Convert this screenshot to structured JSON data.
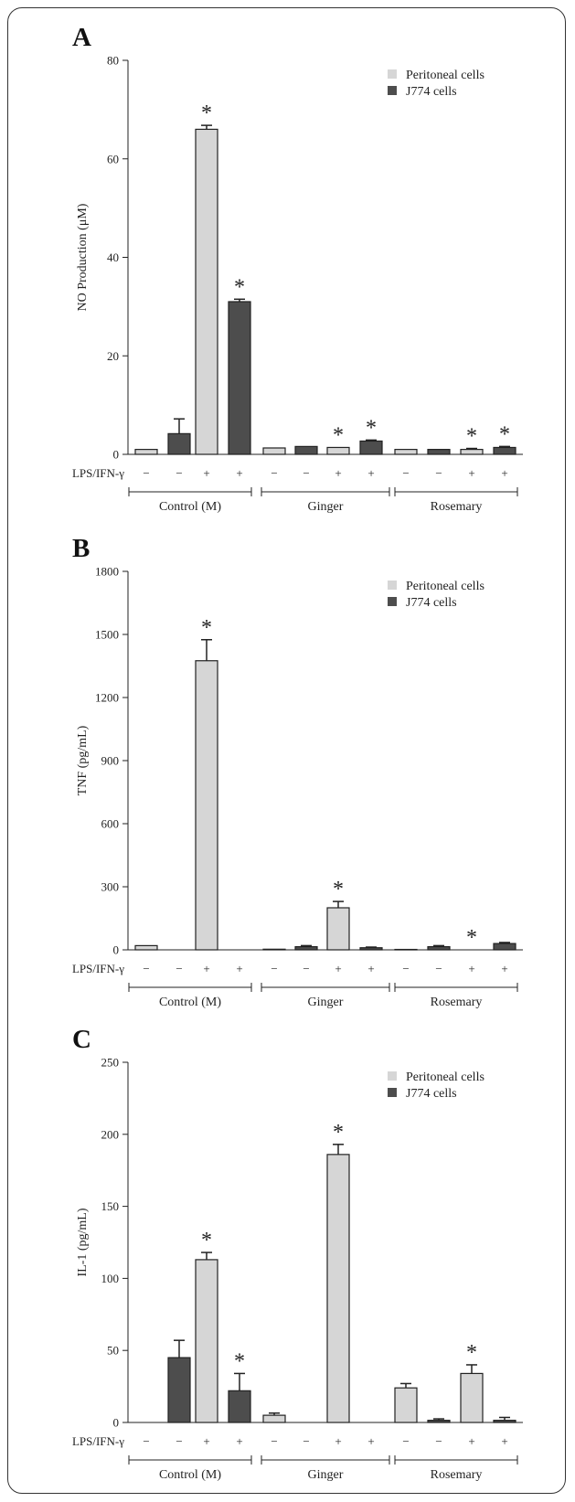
{
  "figure": {
    "row_label": "LPS/IFN-γ",
    "minus_sign": "−",
    "plus_sign": "+",
    "star": "*",
    "colors": {
      "peritoneal": "#d6d6d6",
      "j774": "#4d4d4d",
      "axis": "#222222"
    }
  },
  "chart_data": [
    {
      "panel": "A",
      "type": "bar",
      "ylabel": "NO Production (μM)",
      "ylim": [
        0,
        80
      ],
      "yticks": [
        0,
        20,
        40,
        60,
        80
      ],
      "legend": {
        "placement": "top-right",
        "entries": [
          "Peritoneal cells",
          "J774 cells"
        ]
      },
      "groups": [
        "Control (M)",
        "Ginger",
        "Rosemary"
      ],
      "lps_ifn": [
        "−",
        "−",
        "+",
        "+",
        "−",
        "−",
        "+",
        "+",
        "−",
        "−",
        "+",
        "+"
      ],
      "bars": [
        {
          "group": "Control (M)",
          "lps_ifn": "−",
          "series": "Peritoneal cells",
          "value": 1,
          "err": 0
        },
        {
          "group": "Control (M)",
          "lps_ifn": "−",
          "series": "J774 cells",
          "value": 4.2,
          "err": 3
        },
        {
          "group": "Control (M)",
          "lps_ifn": "+",
          "series": "Peritoneal cells",
          "value": 66,
          "err": 0.8,
          "sig": true
        },
        {
          "group": "Control (M)",
          "lps_ifn": "+",
          "series": "J774 cells",
          "value": 31,
          "err": 0.5,
          "sig": true
        },
        {
          "group": "Ginger",
          "lps_ifn": "−",
          "series": "Peritoneal cells",
          "value": 1.3,
          "err": 0
        },
        {
          "group": "Ginger",
          "lps_ifn": "−",
          "series": "J774 cells",
          "value": 1.6,
          "err": 0
        },
        {
          "group": "Ginger",
          "lps_ifn": "+",
          "series": "Peritoneal cells",
          "value": 1.4,
          "err": 0,
          "sig": true
        },
        {
          "group": "Ginger",
          "lps_ifn": "+",
          "series": "J774 cells",
          "value": 2.7,
          "err": 0.2,
          "sig": true
        },
        {
          "group": "Rosemary",
          "lps_ifn": "−",
          "series": "Peritoneal cells",
          "value": 1,
          "err": 0
        },
        {
          "group": "Rosemary",
          "lps_ifn": "−",
          "series": "J774 cells",
          "value": 1,
          "err": 0
        },
        {
          "group": "Rosemary",
          "lps_ifn": "+",
          "series": "Peritoneal cells",
          "value": 1,
          "err": 0.2,
          "sig": true
        },
        {
          "group": "Rosemary",
          "lps_ifn": "+",
          "series": "J774 cells",
          "value": 1.4,
          "err": 0.2,
          "sig": true
        }
      ]
    },
    {
      "panel": "B",
      "type": "bar",
      "ylabel": "TNF (pg/mL)",
      "ylim": [
        0,
        1800
      ],
      "yticks": [
        0,
        300,
        600,
        900,
        1200,
        1500,
        1800
      ],
      "legend": {
        "placement": "top-right",
        "entries": [
          "Peritoneal cells",
          "J774 cells"
        ]
      },
      "groups": [
        "Control (M)",
        "Ginger",
        "Rosemary"
      ],
      "lps_ifn": [
        "−",
        "−",
        "+",
        "+",
        "−",
        "−",
        "+",
        "+",
        "−",
        "−",
        "+",
        "+"
      ],
      "bars": [
        {
          "group": "Control (M)",
          "lps_ifn": "−",
          "series": "Peritoneal cells",
          "value": 20,
          "err": 0
        },
        {
          "group": "Control (M)",
          "lps_ifn": "−",
          "series": "J774 cells",
          "value": 0,
          "err": 0
        },
        {
          "group": "Control (M)",
          "lps_ifn": "+",
          "series": "Peritoneal cells",
          "value": 1375,
          "err": 100,
          "sig": true
        },
        {
          "group": "Control (M)",
          "lps_ifn": "+",
          "series": "J774 cells",
          "value": 0,
          "err": 0
        },
        {
          "group": "Ginger",
          "lps_ifn": "−",
          "series": "Peritoneal cells",
          "value": 3,
          "err": 0
        },
        {
          "group": "Ginger",
          "lps_ifn": "−",
          "series": "J774 cells",
          "value": 15,
          "err": 5
        },
        {
          "group": "Ginger",
          "lps_ifn": "+",
          "series": "Peritoneal cells",
          "value": 200,
          "err": 30,
          "sig": true
        },
        {
          "group": "Ginger",
          "lps_ifn": "+",
          "series": "J774 cells",
          "value": 10,
          "err": 3
        },
        {
          "group": "Rosemary",
          "lps_ifn": "−",
          "series": "Peritoneal cells",
          "value": 2,
          "err": 0
        },
        {
          "group": "Rosemary",
          "lps_ifn": "−",
          "series": "J774 cells",
          "value": 15,
          "err": 5
        },
        {
          "group": "Rosemary",
          "lps_ifn": "+",
          "series": "Peritoneal cells",
          "value": 0,
          "err": 0,
          "sig": true
        },
        {
          "group": "Rosemary",
          "lps_ifn": "+",
          "series": "J774 cells",
          "value": 30,
          "err": 5
        }
      ]
    },
    {
      "panel": "C",
      "type": "bar",
      "ylabel": "IL-1 (pg/mL)",
      "ylim": [
        0,
        250
      ],
      "yticks": [
        0,
        50,
        100,
        150,
        200,
        250
      ],
      "legend": {
        "placement": "top-right",
        "entries": [
          "Peritoneal cells",
          "J774 cells"
        ]
      },
      "groups": [
        "Control (M)",
        "Ginger",
        "Rosemary"
      ],
      "lps_ifn": [
        "−",
        "−",
        "+",
        "+",
        "−",
        "−",
        "+",
        "+",
        "−",
        "−",
        "+",
        "+"
      ],
      "bars": [
        {
          "group": "Control (M)",
          "lps_ifn": "−",
          "series": "Peritoneal cells",
          "value": 0,
          "err": 0
        },
        {
          "group": "Control (M)",
          "lps_ifn": "−",
          "series": "J774 cells",
          "value": 45,
          "err": 12
        },
        {
          "group": "Control (M)",
          "lps_ifn": "+",
          "series": "Peritoneal cells",
          "value": 113,
          "err": 5,
          "sig": true
        },
        {
          "group": "Control (M)",
          "lps_ifn": "+",
          "series": "J774 cells",
          "value": 22,
          "err": 12,
          "sig": true
        },
        {
          "group": "Ginger",
          "lps_ifn": "−",
          "series": "Peritoneal cells",
          "value": 5,
          "err": 1.5
        },
        {
          "group": "Ginger",
          "lps_ifn": "−",
          "series": "J774 cells",
          "value": 0,
          "err": 0
        },
        {
          "group": "Ginger",
          "lps_ifn": "+",
          "series": "Peritoneal cells",
          "value": 186,
          "err": 7,
          "sig": true
        },
        {
          "group": "Ginger",
          "lps_ifn": "+",
          "series": "J774 cells",
          "value": 0,
          "err": 0
        },
        {
          "group": "Rosemary",
          "lps_ifn": "−",
          "series": "Peritoneal cells",
          "value": 24,
          "err": 3
        },
        {
          "group": "Rosemary",
          "lps_ifn": "−",
          "series": "J774 cells",
          "value": 1.5,
          "err": 1
        },
        {
          "group": "Rosemary",
          "lps_ifn": "+",
          "series": "Peritoneal cells",
          "value": 34,
          "err": 6,
          "sig": true
        },
        {
          "group": "Rosemary",
          "lps_ifn": "+",
          "series": "J774 cells",
          "value": 1.5,
          "err": 2
        }
      ]
    }
  ]
}
